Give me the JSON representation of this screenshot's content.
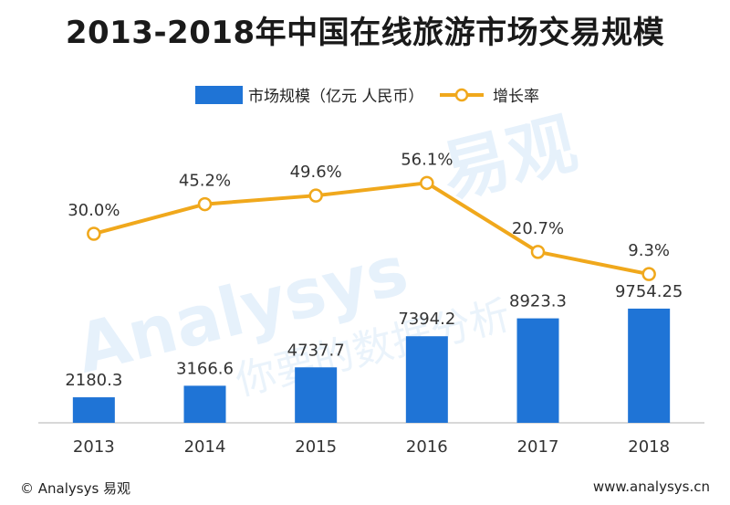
{
  "title": "2013-2018年中国在线旅游市场交易规模",
  "legend": {
    "bar": "市场规模（亿元 人民币）",
    "line": "增长率"
  },
  "colors": {
    "bar": "#1f74d6",
    "line": "#f0a81c",
    "axis": "#cccccc"
  },
  "watermark": {
    "brand_en": "Analysys",
    "brand_cn": "易观",
    "slogan": "你要的数据分析"
  },
  "footer": {
    "left": "© Analysys 易观",
    "right": "www.analysys.cn"
  },
  "chart_data": {
    "type": "bar",
    "categories": [
      "2013",
      "2014",
      "2015",
      "2016",
      "2017",
      "2018"
    ],
    "series": [
      {
        "name": "市场规模（亿元 人民币）",
        "type": "bar",
        "values": [
          2180.3,
          3166.6,
          4737.7,
          7394.2,
          8923.3,
          9754.25
        ],
        "labels": [
          "2180.3",
          "3166.6",
          "4737.7",
          "7394.2",
          "8923.3",
          "9754.25"
        ]
      },
      {
        "name": "增长率",
        "type": "line",
        "values": [
          30.0,
          45.2,
          49.6,
          56.1,
          20.7,
          9.3
        ],
        "labels": [
          "30.0%",
          "45.2%",
          "49.6%",
          "56.1%",
          "20.7%",
          "9.3%"
        ]
      }
    ],
    "grid": false,
    "legend_position": "top-center"
  }
}
